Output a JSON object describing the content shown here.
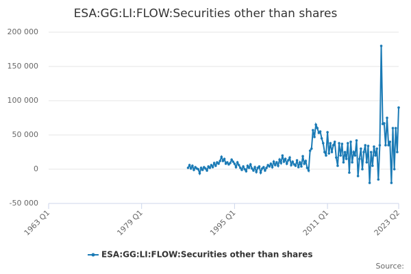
{
  "chart_data": {
    "type": "line",
    "title": "ESA:GG:LI:FLOW:Securities other than shares",
    "source": "Source:",
    "x": [
      "1987 Q1",
      "1987 Q2",
      "1987 Q3",
      "1987 Q4",
      "1988 Q1",
      "1988 Q2",
      "1988 Q3",
      "1988 Q4",
      "1989 Q1",
      "1989 Q2",
      "1989 Q3",
      "1989 Q4",
      "1990 Q1",
      "1990 Q2",
      "1990 Q3",
      "1990 Q4",
      "1991 Q1",
      "1991 Q2",
      "1991 Q3",
      "1991 Q4",
      "1992 Q1",
      "1992 Q2",
      "1992 Q3",
      "1992 Q4",
      "1993 Q1",
      "1993 Q2",
      "1993 Q3",
      "1993 Q4",
      "1994 Q1",
      "1994 Q2",
      "1994 Q3",
      "1994 Q4",
      "1995 Q1",
      "1995 Q2",
      "1995 Q3",
      "1995 Q4",
      "1996 Q1",
      "1996 Q2",
      "1996 Q3",
      "1996 Q4",
      "1997 Q1",
      "1997 Q2",
      "1997 Q3",
      "1997 Q4",
      "1998 Q1",
      "1998 Q2",
      "1998 Q3",
      "1998 Q4",
      "1999 Q1",
      "1999 Q2",
      "1999 Q3",
      "1999 Q4",
      "2000 Q1",
      "2000 Q2",
      "2000 Q3",
      "2000 Q4",
      "2001 Q1",
      "2001 Q2",
      "2001 Q3",
      "2001 Q4",
      "2002 Q1",
      "2002 Q2",
      "2002 Q3",
      "2002 Q4",
      "2003 Q1",
      "2003 Q2",
      "2003 Q3",
      "2003 Q4",
      "2004 Q1",
      "2004 Q2",
      "2004 Q3",
      "2004 Q4",
      "2005 Q1",
      "2005 Q2",
      "2005 Q3",
      "2005 Q4",
      "2006 Q1",
      "2006 Q2",
      "2006 Q3",
      "2006 Q4",
      "2007 Q1",
      "2007 Q2",
      "2007 Q3",
      "2007 Q4",
      "2008 Q1",
      "2008 Q2",
      "2008 Q3",
      "2008 Q4",
      "2009 Q1",
      "2009 Q2",
      "2009 Q3",
      "2009 Q4",
      "2010 Q1",
      "2010 Q2",
      "2010 Q3",
      "2010 Q4",
      "2011 Q1",
      "2011 Q2",
      "2011 Q3",
      "2011 Q4",
      "2012 Q1",
      "2012 Q2",
      "2012 Q3",
      "2012 Q4",
      "2013 Q1",
      "2013 Q2",
      "2013 Q3",
      "2013 Q4",
      "2014 Q1",
      "2014 Q2",
      "2014 Q3",
      "2014 Q4",
      "2015 Q1",
      "2015 Q2",
      "2015 Q3",
      "2015 Q4",
      "2016 Q1",
      "2016 Q2",
      "2016 Q3",
      "2016 Q4",
      "2017 Q1",
      "2017 Q2",
      "2017 Q3",
      "2017 Q4",
      "2018 Q1",
      "2018 Q2",
      "2018 Q3",
      "2018 Q4",
      "2019 Q1",
      "2019 Q2",
      "2019 Q3",
      "2019 Q4",
      "2020 Q1",
      "2020 Q2",
      "2020 Q3",
      "2020 Q4",
      "2021 Q1",
      "2021 Q2",
      "2021 Q3",
      "2021 Q4",
      "2022 Q1",
      "2022 Q2",
      "2022 Q3",
      "2022 Q4",
      "2023 Q1",
      "2023 Q2"
    ],
    "series": [
      {
        "name": "ESA:GG:LI:FLOW:Securities other than shares",
        "color": "#1a7ab5",
        "values": [
          2000,
          6000,
          1000,
          5000,
          -1000,
          3000,
          1000,
          0,
          -6000,
          2000,
          -1000,
          3000,
          1000,
          -2000,
          4000,
          2000,
          6000,
          3000,
          9000,
          5000,
          10000,
          8000,
          12000,
          18000,
          12000,
          15000,
          8000,
          10000,
          7000,
          9000,
          14000,
          11000,
          8000,
          3000,
          10000,
          6000,
          2000,
          -1000,
          4000,
          0,
          -3000,
          5000,
          2000,
          7000,
          1000,
          -2000,
          3000,
          -4000,
          2000,
          4000,
          -5000,
          1000,
          3000,
          -2000,
          2000,
          6000,
          4000,
          8000,
          3000,
          11000,
          6000,
          10000,
          5000,
          14000,
          9000,
          20000,
          11000,
          15000,
          8000,
          13000,
          17000,
          6000,
          11000,
          7000,
          5000,
          13000,
          3000,
          10000,
          4000,
          19000,
          8000,
          12000,
          2000,
          -2000,
          27000,
          30000,
          57000,
          47000,
          65000,
          60000,
          53000,
          55000,
          45000,
          38000,
          25000,
          20000,
          54000,
          23000,
          38000,
          25000,
          35000,
          40000,
          17000,
          5000,
          38000,
          20000,
          37000,
          10000,
          25000,
          15000,
          38000,
          -5000,
          40000,
          10000,
          25000,
          20000,
          42000,
          -10000,
          15000,
          30000,
          0,
          25000,
          35000,
          10000,
          34000,
          -20000,
          25000,
          5000,
          33000,
          20000,
          30000,
          -15000,
          35000,
          180000,
          66000,
          67000,
          35000,
          75000,
          35000,
          40000,
          -20000,
          60000,
          0,
          60000,
          25000,
          90000
        ]
      }
    ],
    "xlim": [
      "1963 Q1",
      "2023 Q2"
    ],
    "xticks": [
      "1963 Q1",
      "1979 Q1",
      "1995 Q1",
      "2011 Q1",
      "2023 Q2"
    ],
    "ylim": [
      -50000,
      200000
    ],
    "yticks": [
      {
        "value": -50000,
        "label": "-50 000"
      },
      0,
      {
        "value": 50000,
        "label": "50 000"
      },
      {
        "value": 100000,
        "label": "100 000"
      },
      {
        "value": 150000,
        "label": "150 000"
      },
      {
        "value": 200000,
        "label": "200 000"
      }
    ],
    "grid": true
  }
}
